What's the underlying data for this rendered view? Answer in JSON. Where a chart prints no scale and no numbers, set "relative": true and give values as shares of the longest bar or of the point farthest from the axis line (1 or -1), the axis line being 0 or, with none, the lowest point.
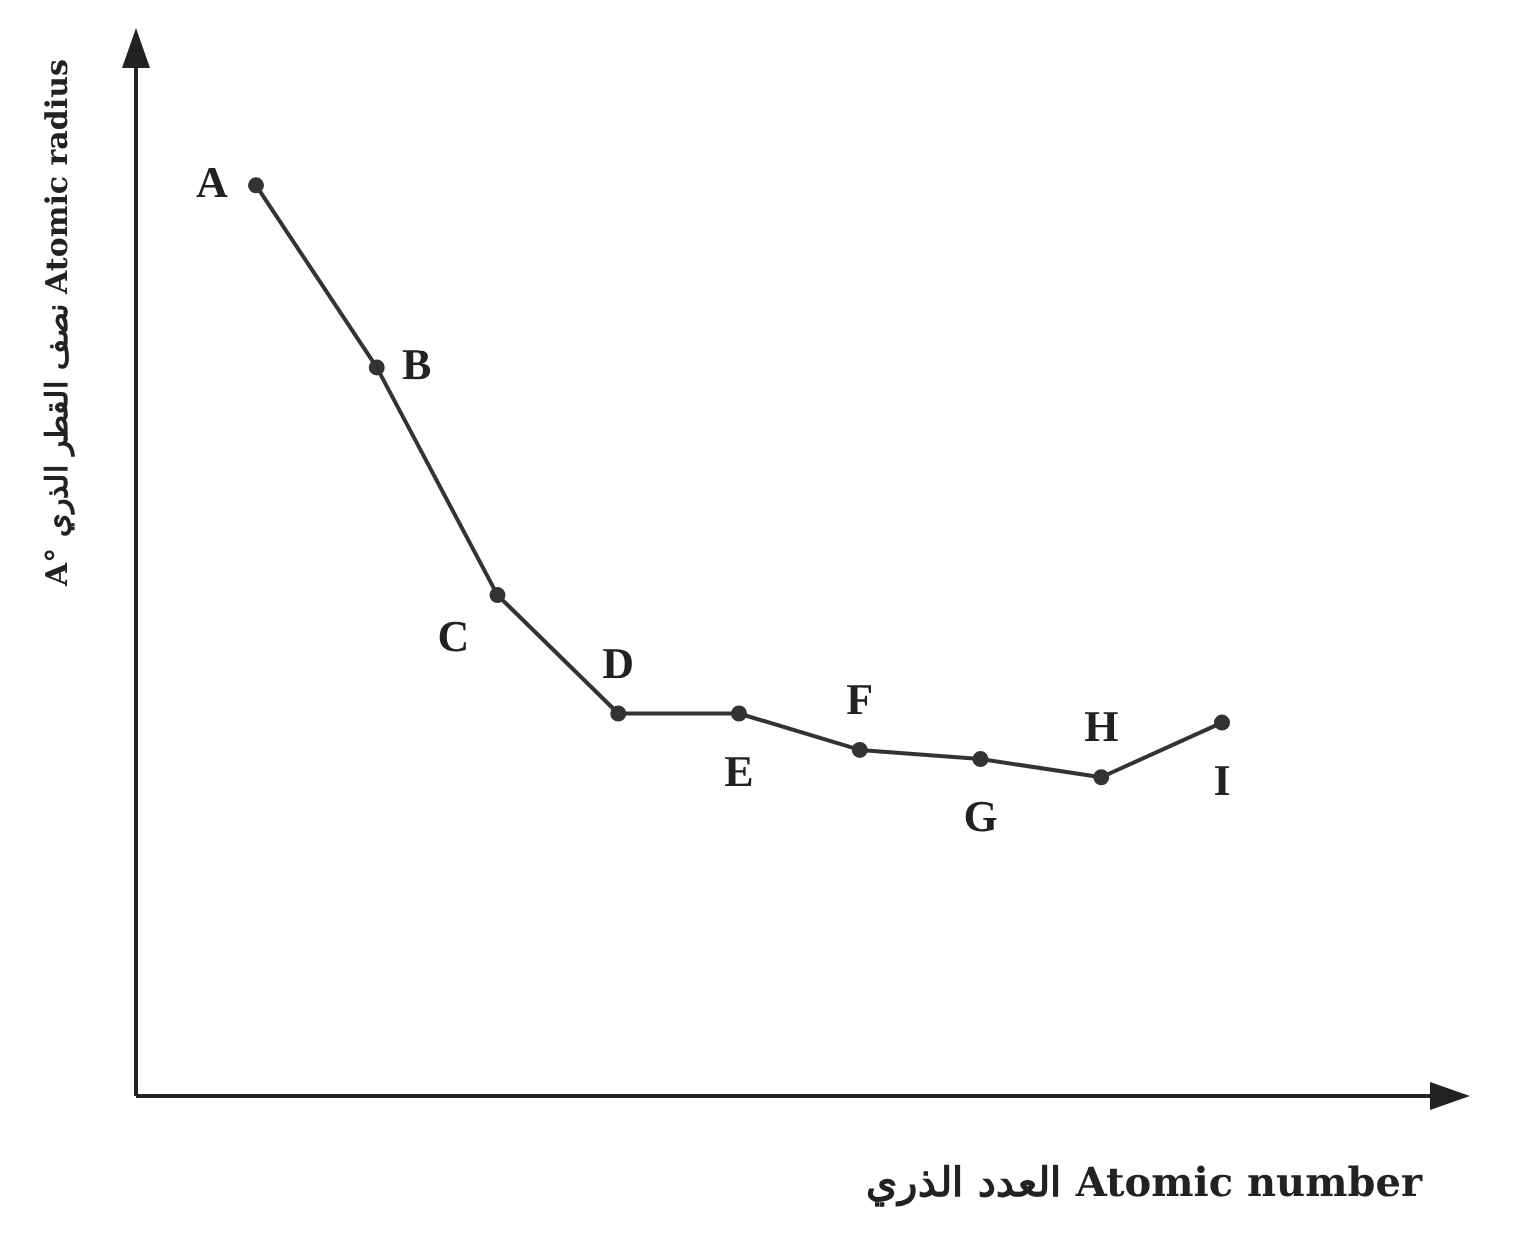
{
  "chart_data": {
    "type": "line",
    "relative": true,
    "xlabel": "العدد الذري Atomic number",
    "ylabel": "A° نصف القطر الذري Atomic radius",
    "categories": [
      null,
      null,
      null,
      null,
      null,
      null,
      null,
      null,
      null
    ],
    "series": [
      {
        "color": "#333333",
        "values": [
          1,
          0.8,
          0.55,
          0.42,
          0.42,
          0.38,
          0.37,
          0.35,
          0.41
        ]
      }
    ],
    "value_labels": [
      "A",
      "B",
      "C",
      "D",
      "E",
      "F",
      "G",
      "H",
      "I"
    ],
    "marker": "circle",
    "line_style": "solid",
    "legend": false,
    "grid": false
  }
}
